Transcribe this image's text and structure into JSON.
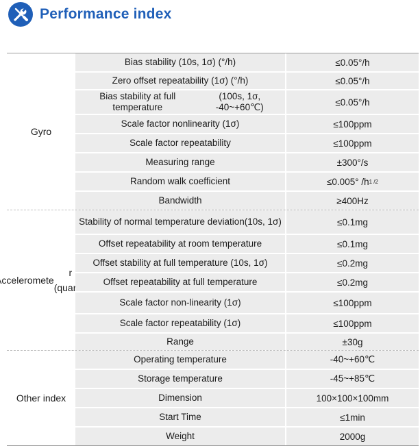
{
  "header": {
    "title": "Performance index",
    "logo_icon": "wrench-screwdriver-icon",
    "accent_color": "#1f5fb8"
  },
  "groups": [
    {
      "name": "Gyro",
      "rows": [
        {
          "param": "Bias stability (10s, 1σ) (°/h)",
          "value": "≤0.05°/h"
        },
        {
          "param": "Zero offset repeatability (1σ) (°/h)",
          "value": "≤0.05°/h"
        },
        {
          "param": "Bias stability at full temperature",
          "param_line2": "(100s, 1σ, -40~+60℃)",
          "value": "≤0.05°/h"
        },
        {
          "param": "Scale factor nonlinearity (1σ)",
          "value": "≤100ppm"
        },
        {
          "param": "Scale factor repeatability",
          "value": "≤100ppm"
        },
        {
          "param": "Measuring range",
          "value": "±300°/s"
        },
        {
          "param": "Random walk coefficient",
          "value": "≤0.005° /h",
          "value_sup": "1 /2"
        },
        {
          "param": "Bandwidth",
          "value": "≥400Hz"
        }
      ]
    },
    {
      "name_line1": "Acceleromete",
      "name_line2": "r (quartz)",
      "rows": [
        {
          "param": "Stability of normal temperature deviation",
          "param_line2": "(10s, 1σ)",
          "value": "≤0.1mg"
        },
        {
          "param": "Offset repeatability at room temperature",
          "value": "≤0.1mg"
        },
        {
          "param": "Offset stability at full temperature (10s, 1σ)",
          "value": "≤0.2mg"
        },
        {
          "param": "Offset repeatability at full temperature",
          "value": "≤0.2mg"
        },
        {
          "param": "Scale factor non-linearity (1σ)",
          "value": "≤100ppm"
        },
        {
          "param": "Scale factor repeatability (1σ)",
          "value": "≤100ppm"
        },
        {
          "param": "Range",
          "value": "±30g"
        }
      ]
    },
    {
      "name": "Other index",
      "rows": [
        {
          "param": "Operating temperature",
          "value": "-40~+60℃"
        },
        {
          "param": "Storage temperature",
          "value": "-45~+85℃"
        },
        {
          "param": "Dimension",
          "value": "100×100×100mm"
        },
        {
          "param": "Start Time",
          "value": "≤1min"
        },
        {
          "param": "Weight",
          "value": "2000g"
        }
      ]
    }
  ]
}
